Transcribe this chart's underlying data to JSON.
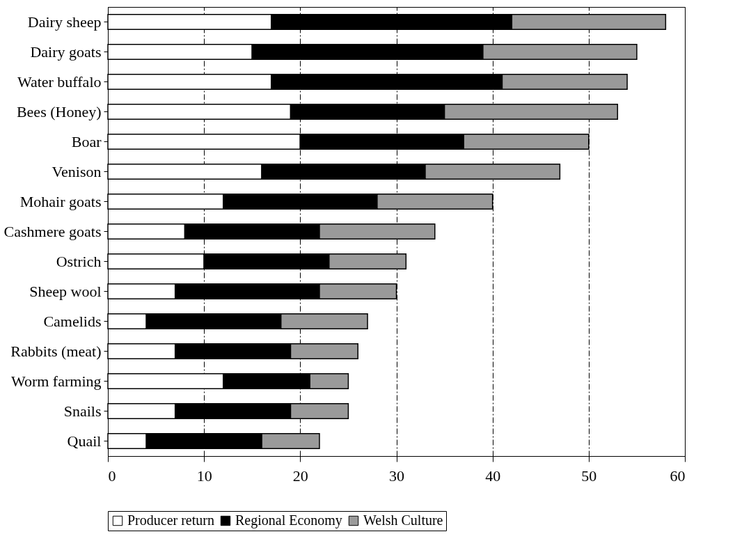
{
  "chart_data": {
    "type": "bar",
    "orientation": "horizontal",
    "stacked": true,
    "categories": [
      "Dairy sheep",
      "Dairy goats",
      "Water buffalo",
      "Bees (Honey)",
      "Boar",
      "Venison",
      "Mohair goats",
      "Cashmere goats",
      "Ostrich",
      "Sheep wool",
      "Camelids",
      "Rabbits (meat)",
      "Worm farming",
      "Snails",
      "Quail"
    ],
    "series": [
      {
        "name": "Producer return",
        "color": "#ffffff",
        "values": [
          17,
          15,
          17,
          19,
          20,
          16,
          12,
          8,
          10,
          7,
          4,
          7,
          12,
          7,
          4
        ]
      },
      {
        "name": "Regional Economy",
        "color": "#000000",
        "values": [
          25,
          24,
          24,
          16,
          17,
          17,
          16,
          14,
          13,
          15,
          14,
          12,
          9,
          12,
          12
        ]
      },
      {
        "name": "Welsh Culture",
        "color": "#9a9a9a",
        "values": [
          16,
          16,
          13,
          18,
          13,
          14,
          12,
          12,
          8,
          8,
          9,
          7,
          4,
          6,
          6
        ]
      }
    ],
    "xlim": [
      0,
      60
    ],
    "xticks": [
      0,
      10,
      20,
      30,
      40,
      50,
      60
    ],
    "grid": "x",
    "legend": "bottom"
  }
}
